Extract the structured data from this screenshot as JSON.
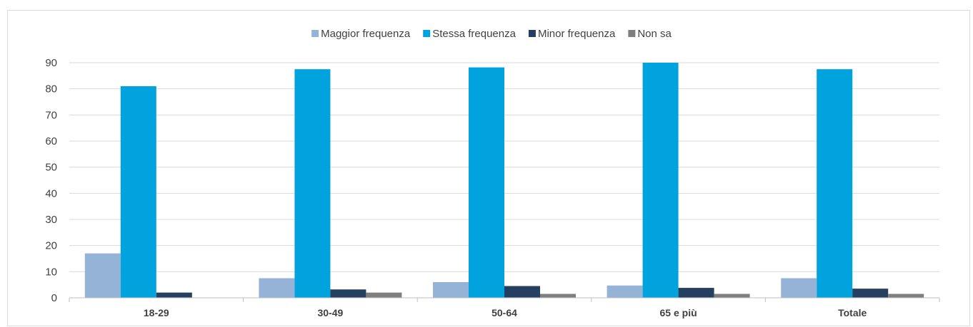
{
  "chart_data": {
    "type": "bar",
    "title": "",
    "xlabel": "",
    "ylabel": "",
    "categories": [
      "18-29",
      "30-49",
      "50-64",
      "65 e più",
      "Totale"
    ],
    "series": [
      {
        "name": "Maggior frequenza",
        "color": "#95b3d7",
        "values": [
          17,
          7.5,
          6,
          4.7,
          7.5
        ]
      },
      {
        "name": "Stessa frequenza",
        "color": "#00a3dd",
        "values": [
          81,
          87.5,
          88.2,
          90,
          87.5
        ]
      },
      {
        "name": "Minor frequenza",
        "color": "#243f60",
        "values": [
          2,
          3.2,
          4.5,
          3.8,
          3.5
        ]
      },
      {
        "name": "Non sa",
        "color": "#7f7f7f",
        "values": [
          0,
          2,
          1.5,
          1.5,
          1.5
        ]
      }
    ],
    "ylim": [
      0,
      90
    ],
    "yticks": [
      0,
      10,
      20,
      30,
      40,
      50,
      60,
      70,
      80,
      90
    ],
    "grid": true,
    "legend_position": "top-center"
  }
}
